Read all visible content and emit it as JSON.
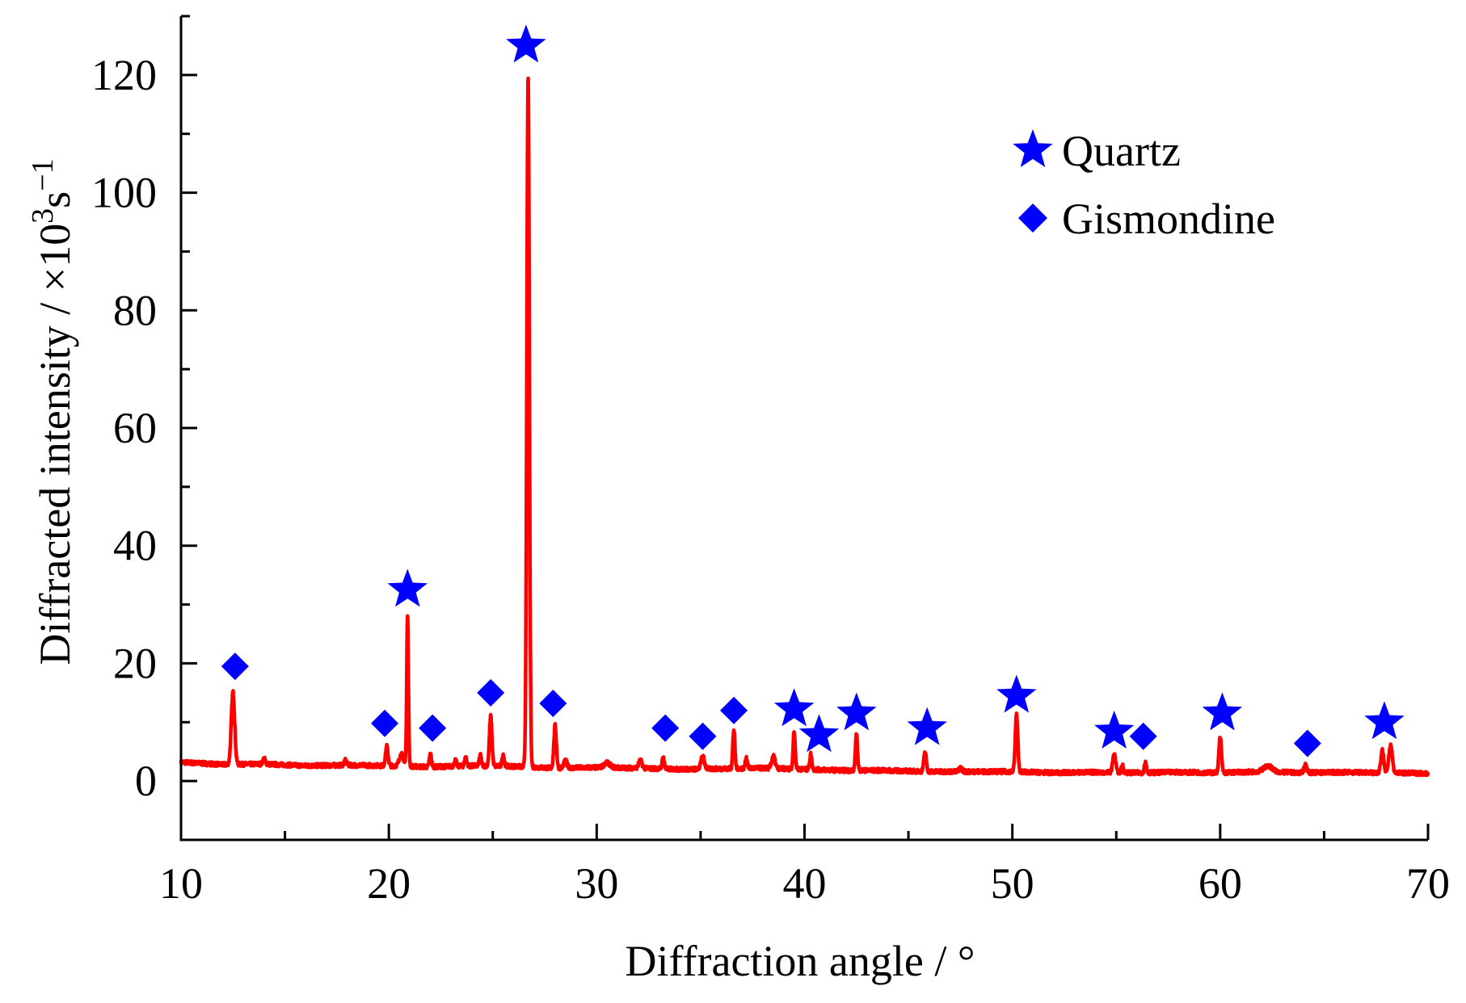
{
  "chart_data": {
    "type": "line",
    "title": "",
    "xlabel": "Diffraction angle / °",
    "ylabel": {
      "main": "Diffracted intensity / ×10",
      "sup1": "3",
      "mid": "s",
      "sup2": "−1"
    },
    "xlim": [
      10,
      70
    ],
    "ylim": [
      -10,
      130
    ],
    "x_ticks": [
      10,
      20,
      30,
      40,
      50,
      60,
      70
    ],
    "x_tick_labels": [
      "10",
      "20",
      "30",
      "40",
      "50",
      "60",
      "70"
    ],
    "y_ticks": [
      0,
      20,
      40,
      60,
      80,
      100,
      120
    ],
    "y_tick_labels": [
      "0",
      "20",
      "40",
      "60",
      "80",
      "100",
      "120"
    ],
    "grid": false,
    "line_color": "#ff0000",
    "marker_color": "#0000ff",
    "baseline": [
      [
        10,
        3.2
      ],
      [
        12,
        2.8
      ],
      [
        14,
        2.9
      ],
      [
        16,
        2.6
      ],
      [
        18,
        2.7
      ],
      [
        20,
        2.6
      ],
      [
        22,
        2.4
      ],
      [
        24,
        2.6
      ],
      [
        26,
        2.5
      ],
      [
        28,
        2.2
      ],
      [
        30,
        2.3
      ],
      [
        32,
        2.2
      ],
      [
        34,
        2.0
      ],
      [
        36,
        2.1
      ],
      [
        38,
        2.2
      ],
      [
        40,
        2.0
      ],
      [
        42,
        1.8
      ],
      [
        44,
        1.8
      ],
      [
        46,
        1.6
      ],
      [
        48,
        1.6
      ],
      [
        50,
        1.6
      ],
      [
        52,
        1.4
      ],
      [
        54,
        1.5
      ],
      [
        56,
        1.4
      ],
      [
        58,
        1.5
      ],
      [
        60,
        1.4
      ],
      [
        62,
        1.6
      ],
      [
        64,
        1.4
      ],
      [
        66,
        1.5
      ],
      [
        68,
        1.4
      ],
      [
        70,
        1.3
      ]
    ],
    "peaks": [
      {
        "x": 12.5,
        "height": 12.3,
        "width": 0.08
      },
      {
        "x": 14.0,
        "height": 0.9,
        "width": 0.06
      },
      {
        "x": 17.9,
        "height": 0.8,
        "width": 0.06
      },
      {
        "x": 19.9,
        "height": 3.3,
        "width": 0.06
      },
      {
        "x": 20.6,
        "height": 2.0,
        "width": 0.1
      },
      {
        "x": 20.9,
        "height": 26.0,
        "width": 0.04
      },
      {
        "x": 22.0,
        "height": 2.2,
        "width": 0.05
      },
      {
        "x": 23.2,
        "height": 1.0,
        "width": 0.05
      },
      {
        "x": 23.7,
        "height": 1.5,
        "width": 0.05
      },
      {
        "x": 24.4,
        "height": 1.8,
        "width": 0.05
      },
      {
        "x": 24.9,
        "height": 8.5,
        "width": 0.06
      },
      {
        "x": 25.5,
        "height": 2.0,
        "width": 0.05
      },
      {
        "x": 26.7,
        "height": 117.5,
        "width": 0.06
      },
      {
        "x": 28.0,
        "height": 7.2,
        "width": 0.06
      },
      {
        "x": 28.5,
        "height": 1.2,
        "width": 0.08
      },
      {
        "x": 30.5,
        "height": 0.8,
        "width": 0.15
      },
      {
        "x": 32.1,
        "height": 1.3,
        "width": 0.08
      },
      {
        "x": 33.2,
        "height": 2.0,
        "width": 0.05
      },
      {
        "x": 35.1,
        "height": 2.2,
        "width": 0.08
      },
      {
        "x": 36.6,
        "height": 6.6,
        "width": 0.05
      },
      {
        "x": 37.2,
        "height": 1.8,
        "width": 0.05
      },
      {
        "x": 38.5,
        "height": 2.1,
        "width": 0.08
      },
      {
        "x": 39.5,
        "height": 6.3,
        "width": 0.05
      },
      {
        "x": 40.3,
        "height": 2.6,
        "width": 0.05
      },
      {
        "x": 42.5,
        "height": 6.2,
        "width": 0.05
      },
      {
        "x": 45.8,
        "height": 3.3,
        "width": 0.06
      },
      {
        "x": 47.5,
        "height": 0.6,
        "width": 0.08
      },
      {
        "x": 50.2,
        "height": 9.8,
        "width": 0.06
      },
      {
        "x": 54.9,
        "height": 3.2,
        "width": 0.07
      },
      {
        "x": 55.3,
        "height": 1.2,
        "width": 0.05
      },
      {
        "x": 56.4,
        "height": 1.8,
        "width": 0.05
      },
      {
        "x": 60.0,
        "height": 6.0,
        "width": 0.06
      },
      {
        "x": 62.3,
        "height": 1.0,
        "width": 0.2
      },
      {
        "x": 64.1,
        "height": 1.3,
        "width": 0.07
      },
      {
        "x": 67.8,
        "height": 3.8,
        "width": 0.07
      },
      {
        "x": 68.2,
        "height": 4.8,
        "width": 0.08
      }
    ],
    "markers": [
      {
        "phase": "Gismondine",
        "x": 12.6,
        "y": 19.5
      },
      {
        "phase": "Gismondine",
        "x": 19.8,
        "y": 9.8
      },
      {
        "phase": "Gismondine",
        "x": 22.1,
        "y": 9.0
      },
      {
        "phase": "Gismondine",
        "x": 24.9,
        "y": 15.0
      },
      {
        "phase": "Gismondine",
        "x": 27.9,
        "y": 13.2
      },
      {
        "phase": "Gismondine",
        "x": 33.3,
        "y": 9.0
      },
      {
        "phase": "Gismondine",
        "x": 35.1,
        "y": 7.6
      },
      {
        "phase": "Gismondine",
        "x": 36.6,
        "y": 12.0
      },
      {
        "phase": "Gismondine",
        "x": 56.3,
        "y": 7.6
      },
      {
        "phase": "Gismondine",
        "x": 64.2,
        "y": 6.4
      },
      {
        "phase": "Quartz",
        "x": 20.9,
        "y": 32.5
      },
      {
        "phase": "Quartz",
        "x": 26.6,
        "y": 125.0
      },
      {
        "phase": "Quartz",
        "x": 39.5,
        "y": 12.2
      },
      {
        "phase": "Quartz",
        "x": 40.7,
        "y": 7.8
      },
      {
        "phase": "Quartz",
        "x": 42.5,
        "y": 11.5
      },
      {
        "phase": "Quartz",
        "x": 45.9,
        "y": 9.0
      },
      {
        "phase": "Quartz",
        "x": 50.2,
        "y": 14.5
      },
      {
        "phase": "Quartz",
        "x": 54.9,
        "y": 8.4
      },
      {
        "phase": "Quartz",
        "x": 60.1,
        "y": 11.5
      },
      {
        "phase": "Quartz",
        "x": 67.9,
        "y": 10.0
      }
    ],
    "legend": {
      "placement": "top-right",
      "entries": [
        {
          "label": "Quartz",
          "marker": "star"
        },
        {
          "label": "Gismondine",
          "marker": "diamond"
        }
      ]
    }
  }
}
